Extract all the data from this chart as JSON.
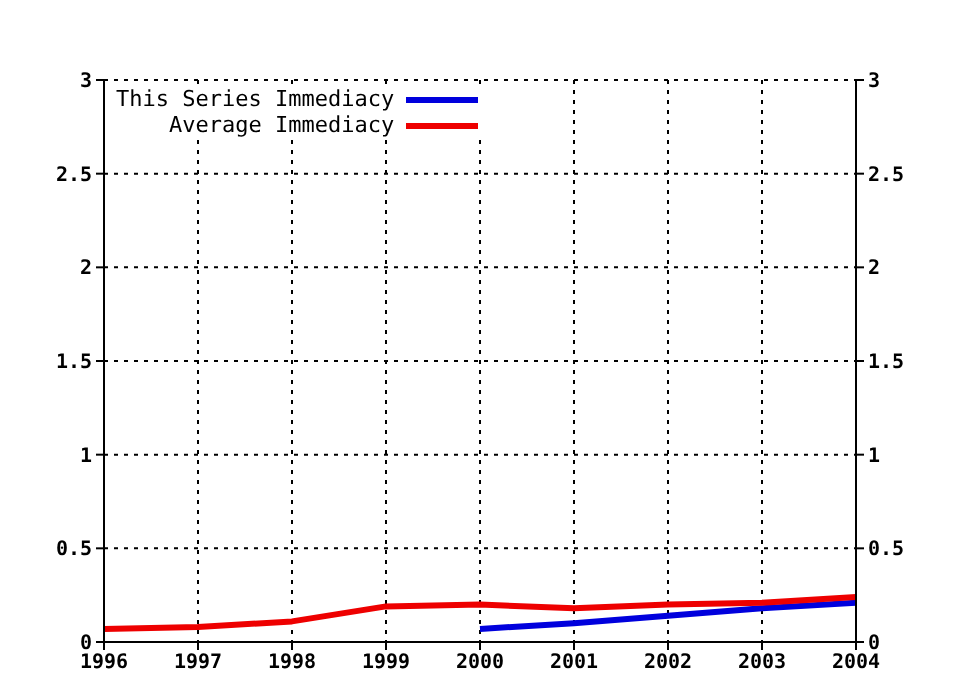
{
  "chart_data": {
    "type": "line",
    "x": [
      1996,
      1997,
      1998,
      1999,
      2000,
      2001,
      2002,
      2003,
      2004
    ],
    "series": [
      {
        "name": "This Series Immediacy",
        "color": "#0000dd",
        "values": [
          null,
          null,
          null,
          null,
          0.07,
          0.1,
          0.14,
          0.18,
          0.21
        ]
      },
      {
        "name": "Average Immediacy",
        "color": "#ee0000",
        "values": [
          0.07,
          0.08,
          0.11,
          0.19,
          0.2,
          0.18,
          0.2,
          0.21,
          0.24
        ]
      }
    ],
    "xlim": [
      1996,
      2004
    ],
    "xticks": [
      1996,
      1997,
      1998,
      1999,
      2000,
      2001,
      2002,
      2003,
      2004
    ],
    "ylim": [
      0,
      3
    ],
    "yticks": [
      0,
      0.5,
      1,
      1.5,
      2,
      2.5,
      3
    ],
    "y2lim": [
      0,
      3
    ],
    "y2ticks": [
      0,
      0.5,
      1,
      1.5,
      2,
      2.5,
      3
    ],
    "grid": true,
    "legend": "top left",
    "marker": "none",
    "line_style": "solid"
  }
}
